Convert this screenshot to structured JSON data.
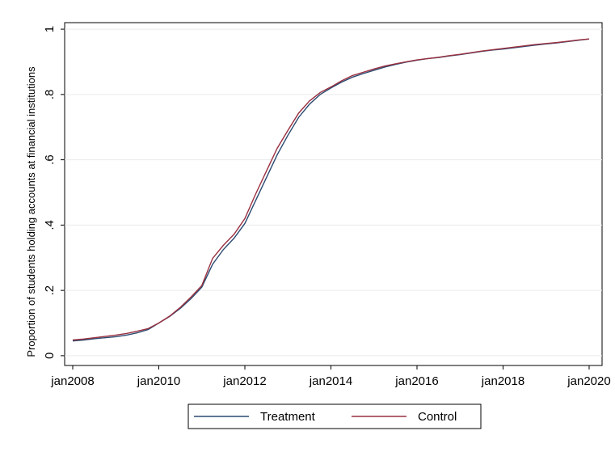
{
  "chart_data": {
    "type": "line",
    "y_label": "Proportion of students holding accounts at financial institutions",
    "x": [
      "2008-01",
      "2008-04",
      "2008-07",
      "2008-10",
      "2009-01",
      "2009-04",
      "2009-07",
      "2009-10",
      "2010-01",
      "2010-04",
      "2010-07",
      "2010-10",
      "2011-01",
      "2011-04",
      "2011-07",
      "2011-10",
      "2012-01",
      "2012-04",
      "2012-07",
      "2012-10",
      "2013-01",
      "2013-04",
      "2013-07",
      "2013-10",
      "2014-01",
      "2014-04",
      "2014-07",
      "2014-10",
      "2015-01",
      "2015-04",
      "2015-07",
      "2015-10",
      "2016-01",
      "2016-04",
      "2016-07",
      "2016-10",
      "2017-01",
      "2017-04",
      "2017-07",
      "2017-10",
      "2018-01",
      "2018-04",
      "2018-07",
      "2018-10",
      "2019-01",
      "2019-04",
      "2019-07",
      "2019-10",
      "2020-01"
    ],
    "series": [
      {
        "name": "Treatment",
        "color": "#2a4a70",
        "values": [
          0.045,
          0.048,
          0.052,
          0.055,
          0.058,
          0.063,
          0.07,
          0.08,
          0.1,
          0.12,
          0.145,
          0.175,
          0.21,
          0.28,
          0.325,
          0.36,
          0.405,
          0.475,
          0.545,
          0.615,
          0.675,
          0.73,
          0.77,
          0.8,
          0.82,
          0.838,
          0.853,
          0.864,
          0.874,
          0.884,
          0.892,
          0.899,
          0.905,
          0.91,
          0.913,
          0.918,
          0.922,
          0.927,
          0.932,
          0.936,
          0.939,
          0.943,
          0.947,
          0.951,
          0.955,
          0.958,
          0.962,
          0.966,
          0.97
        ]
      },
      {
        "name": "Control",
        "color": "#9a3040",
        "values": [
          0.048,
          0.051,
          0.055,
          0.059,
          0.063,
          0.068,
          0.075,
          0.083,
          0.1,
          0.121,
          0.148,
          0.18,
          0.215,
          0.298,
          0.338,
          0.372,
          0.42,
          0.495,
          0.565,
          0.635,
          0.69,
          0.743,
          0.78,
          0.806,
          0.823,
          0.842,
          0.858,
          0.868,
          0.878,
          0.887,
          0.894,
          0.9,
          0.906,
          0.91,
          0.914,
          0.919,
          0.923,
          0.928,
          0.933,
          0.937,
          0.941,
          0.945,
          0.949,
          0.953,
          0.956,
          0.959,
          0.963,
          0.967,
          0.97
        ]
      }
    ],
    "xlim": [
      "2008-01",
      "2020-01"
    ],
    "xticks": [
      {
        "value": "2008-01",
        "label": "jan2008"
      },
      {
        "value": "2010-01",
        "label": "jan2010"
      },
      {
        "value": "2012-01",
        "label": "jan2012"
      },
      {
        "value": "2014-01",
        "label": "jan2014"
      },
      {
        "value": "2016-01",
        "label": "jan2016"
      },
      {
        "value": "2018-01",
        "label": "jan2018"
      },
      {
        "value": "2020-01",
        "label": "jan2020"
      }
    ],
    "ylim": [
      -0.03,
      1.02
    ],
    "yticks": [
      0,
      {
        "value": 0.2,
        "label": ".2"
      },
      {
        "value": 0.4,
        "label": ".4"
      },
      {
        "value": 0.6,
        "label": ".6"
      },
      {
        "value": 0.8,
        "label": ".8"
      },
      1
    ],
    "grid": true,
    "legend": "bottom"
  }
}
